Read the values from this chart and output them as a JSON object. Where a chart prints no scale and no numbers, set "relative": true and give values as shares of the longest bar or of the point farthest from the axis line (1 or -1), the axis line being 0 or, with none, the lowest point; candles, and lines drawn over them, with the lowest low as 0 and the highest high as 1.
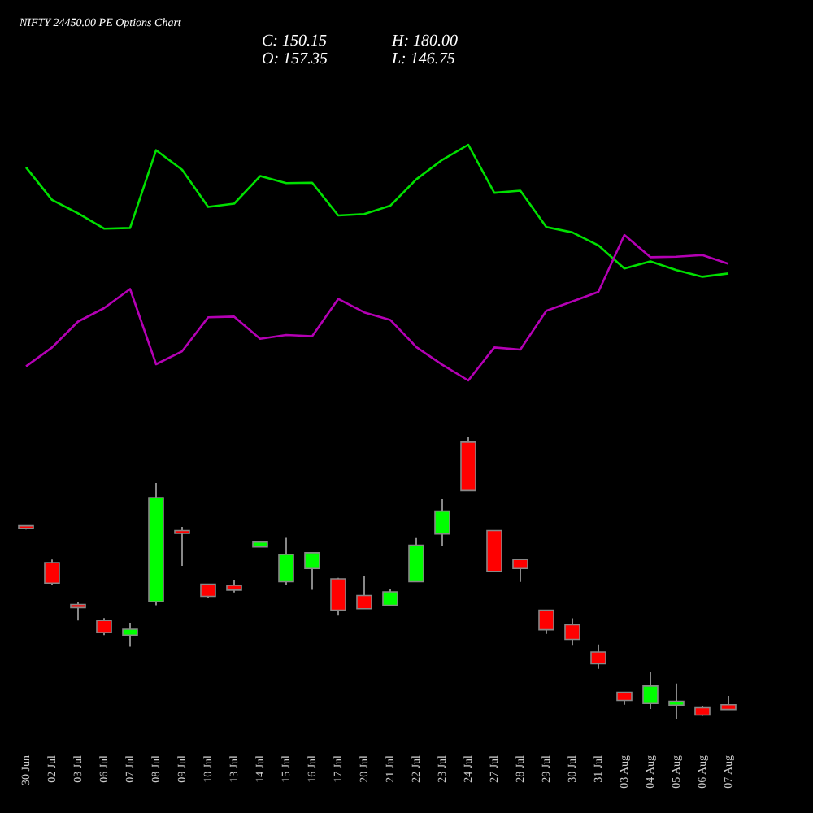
{
  "chart_data": [
    {
      "type": "line",
      "title": "NIFTY 24450.00 PE Options Chart",
      "annotations": [
        "C: 150.15",
        "H: 180.00",
        "O: 157.35",
        "L: 146.75"
      ],
      "relative": true,
      "tick_labels": false,
      "legend": false,
      "categories": [
        null,
        null,
        null,
        null,
        null,
        null,
        null,
        null,
        null,
        null,
        null,
        null,
        null,
        null,
        null,
        null,
        null,
        null,
        null,
        null,
        null,
        null,
        null,
        null,
        null,
        null,
        null,
        null
      ],
      "series": [
        {
          "color": "#00e000",
          "values": [
            0.904,
            0.766,
            0.709,
            0.644,
            0.647,
            0.977,
            0.894,
            0.736,
            0.75,
            0.867,
            0.837,
            0.839,
            0.7,
            0.706,
            0.741,
            0.853,
            0.936,
            1,
            0.796,
            0.805,
            0.651,
            0.628,
            0.573,
            0.475,
            0.505,
            0.468,
            0.44,
            0.454
          ]
        },
        {
          "color": "#b400b4",
          "values": [
            0.06,
            0.14,
            0.25,
            0.307,
            0.388,
            0.069,
            0.124,
            0.268,
            0.271,
            0.177,
            0.193,
            0.188,
            0.346,
            0.289,
            0.257,
            0.142,
            0.067,
            0,
            0.14,
            0.131,
            0.296,
            0.335,
            0.376,
            0.617,
            0.523,
            0.525,
            0.532,
            0.495
          ]
        }
      ]
    },
    {
      "type": "candlestick",
      "relative": true,
      "categories": [
        "30 Jun",
        "02 Jul",
        "03 Jul",
        "06 Jul",
        "07 Jul",
        "08 Jul",
        "09 Jul",
        "10 Jul",
        "13 Jul",
        "14 Jul",
        "15 Jul",
        "16 Jul",
        "17 Jul",
        "20 Jul",
        "21 Jul",
        "22 Jul",
        "23 Jul",
        "24 Jul",
        "27 Jul",
        "28 Jul",
        "29 Jul",
        "30 Jul",
        "31 Jul",
        "03 Aug",
        "04 Aug",
        "05 Aug",
        "06 Aug",
        "07 Aug"
      ],
      "ohlc": [
        [
          0.686,
          0.688,
          0.673,
          0.676
        ],
        [
          0.555,
          0.566,
          0.476,
          0.482
        ],
        [
          0.406,
          0.416,
          0.349,
          0.395
        ],
        [
          0.349,
          0.358,
          0.297,
          0.306
        ],
        [
          0.297,
          0.341,
          0.256,
          0.318
        ],
        [
          0.416,
          0.838,
          0.403,
          0.786
        ],
        [
          0.669,
          0.682,
          0.543,
          0.659
        ],
        [
          0.478,
          0.478,
          0.429,
          0.435
        ],
        [
          0.474,
          0.491,
          0.449,
          0.457
        ],
        [
          0.611,
          0.628,
          0.611,
          0.628
        ],
        [
          0.487,
          0.643,
          0.476,
          0.584
        ],
        [
          0.534,
          0.59,
          0.458,
          0.59
        ],
        [
          0.497,
          0.501,
          0.366,
          0.386
        ],
        [
          0.438,
          0.507,
          0.391,
          0.391
        ],
        [
          0.403,
          0.462,
          0.401,
          0.451
        ],
        [
          0.487,
          0.642,
          0.487,
          0.617
        ],
        [
          0.657,
          0.78,
          0.613,
          0.738
        ],
        [
          0.983,
          1,
          0.811,
          0.811
        ],
        [
          0.669,
          0.669,
          0.524,
          0.524
        ],
        [
          0.566,
          0.566,
          0.486,
          0.534
        ],
        [
          0.386,
          0.386,
          0.301,
          0.316
        ],
        [
          0.334,
          0.357,
          0.262,
          0.282
        ],
        [
          0.237,
          0.264,
          0.177,
          0.195
        ],
        [
          0.094,
          0.094,
          0.05,
          0.065
        ],
        [
          0.054,
          0.166,
          0.035,
          0.116
        ],
        [
          0.048,
          0.125,
          0,
          0.062
        ],
        [
          0.039,
          0.045,
          0.01,
          0.013
        ],
        [
          0.05,
          0.081,
          0.033,
          0.033
        ]
      ]
    }
  ]
}
